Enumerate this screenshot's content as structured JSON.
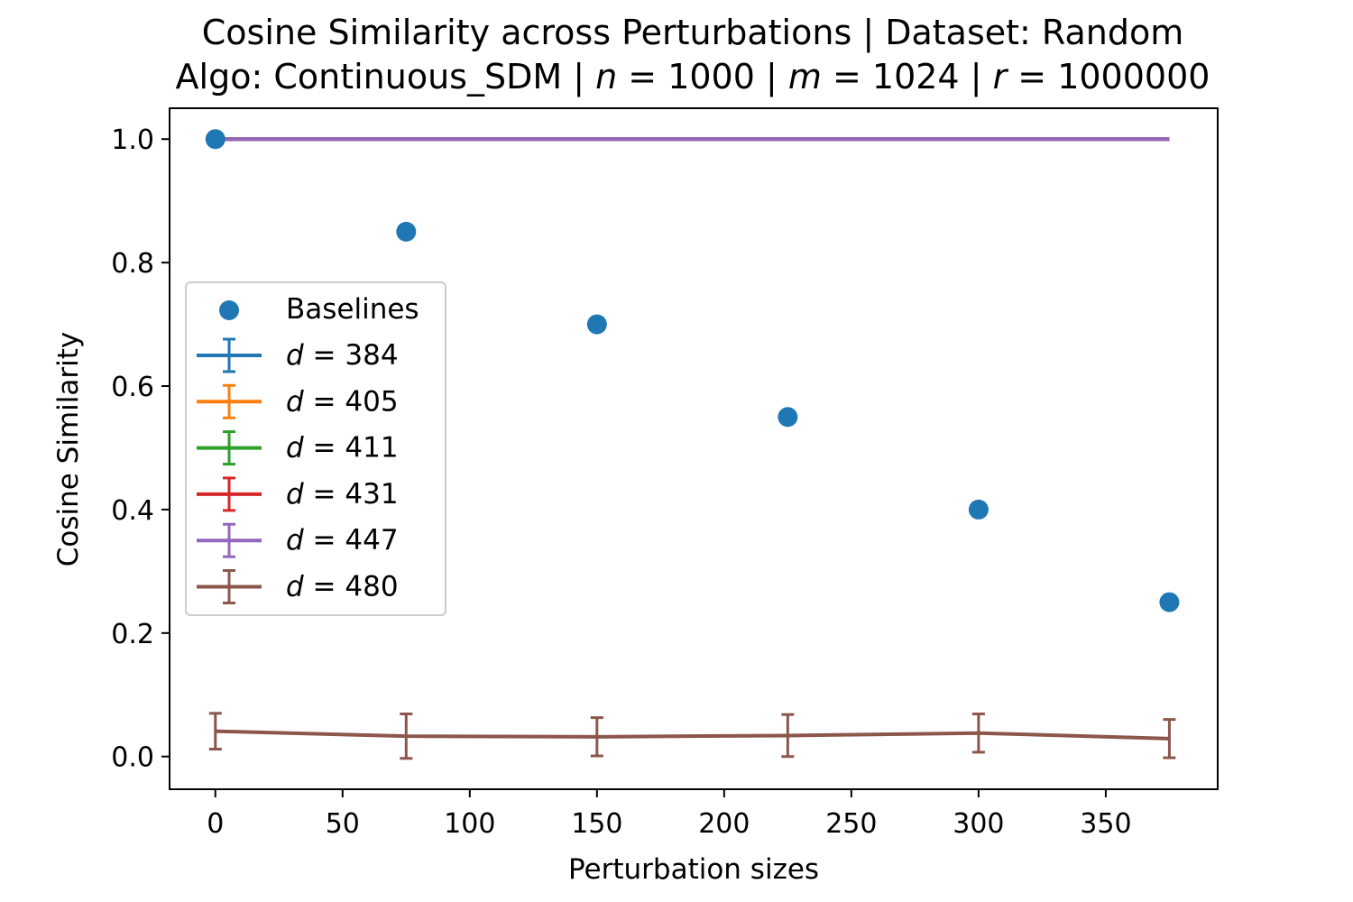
{
  "chart_data": {
    "type": "scatter",
    "title_line1": "Cosine Similarity across Perturbations | Dataset: Random",
    "title_line2_parts": [
      {
        "text": "Algo: Continuous_SDM | ",
        "italic": false
      },
      {
        "text": "n",
        "italic": true
      },
      {
        "text": " = 1000 | ",
        "italic": false
      },
      {
        "text": "m",
        "italic": true
      },
      {
        "text": " = 1024 | ",
        "italic": false
      },
      {
        "text": "r",
        "italic": true
      },
      {
        "text": " = 1000000",
        "italic": false
      }
    ],
    "xlabel": "Perturbation sizes",
    "ylabel": "Cosine Similarity",
    "xlim": [
      -18,
      394
    ],
    "ylim": [
      -0.053,
      1.05
    ],
    "xticks": [
      0,
      50,
      100,
      150,
      200,
      250,
      300,
      350
    ],
    "yticks": [
      0.0,
      0.2,
      0.4,
      0.6,
      0.8,
      1.0
    ],
    "ytick_labels": [
      "0.0",
      "0.2",
      "0.4",
      "0.6",
      "0.8",
      "1.0"
    ],
    "legend_location": "center-left",
    "baselines": {
      "name": "Baselines",
      "color": "#1f77b4",
      "x": [
        0,
        75,
        150,
        225,
        300,
        375
      ],
      "y": [
        1.0,
        0.85,
        0.7,
        0.55,
        0.4,
        0.25
      ]
    },
    "series": [
      {
        "name_var": "d",
        "name_value": "384",
        "color": "#1f77b4",
        "x": [
          0,
          75,
          150,
          225,
          300,
          375
        ],
        "y": [
          1.0,
          1.0,
          1.0,
          1.0,
          1.0,
          1.0
        ],
        "yerr": [
          0,
          0,
          0,
          0,
          0,
          0
        ]
      },
      {
        "name_var": "d",
        "name_value": "405",
        "color": "#ff7f0e",
        "x": [
          0,
          75,
          150,
          225,
          300,
          375
        ],
        "y": [
          1.0,
          1.0,
          1.0,
          1.0,
          1.0,
          1.0
        ],
        "yerr": [
          0,
          0,
          0,
          0,
          0,
          0
        ]
      },
      {
        "name_var": "d",
        "name_value": "411",
        "color": "#2ca02c",
        "x": [
          0,
          75,
          150,
          225,
          300,
          375
        ],
        "y": [
          1.0,
          1.0,
          1.0,
          1.0,
          1.0,
          1.0
        ],
        "yerr": [
          0,
          0,
          0,
          0,
          0,
          0
        ]
      },
      {
        "name_var": "d",
        "name_value": "431",
        "color": "#d62728",
        "x": [
          0,
          75,
          150,
          225,
          300,
          375
        ],
        "y": [
          1.0,
          1.0,
          1.0,
          1.0,
          1.0,
          1.0
        ],
        "yerr": [
          0,
          0,
          0,
          0,
          0,
          0
        ]
      },
      {
        "name_var": "d",
        "name_value": "447",
        "color": "#9467bd",
        "x": [
          0,
          75,
          150,
          225,
          300,
          375
        ],
        "y": [
          1.0,
          1.0,
          1.0,
          1.0,
          1.0,
          1.0
        ],
        "yerr": [
          0,
          0,
          0,
          0,
          0,
          0
        ]
      },
      {
        "name_var": "d",
        "name_value": "480",
        "color": "#8c564b",
        "x": [
          0,
          75,
          150,
          225,
          300,
          375
        ],
        "y": [
          0.041,
          0.033,
          0.032,
          0.034,
          0.038,
          0.029
        ],
        "yerr": [
          0.029,
          0.036,
          0.031,
          0.034,
          0.031,
          0.031
        ]
      }
    ]
  }
}
